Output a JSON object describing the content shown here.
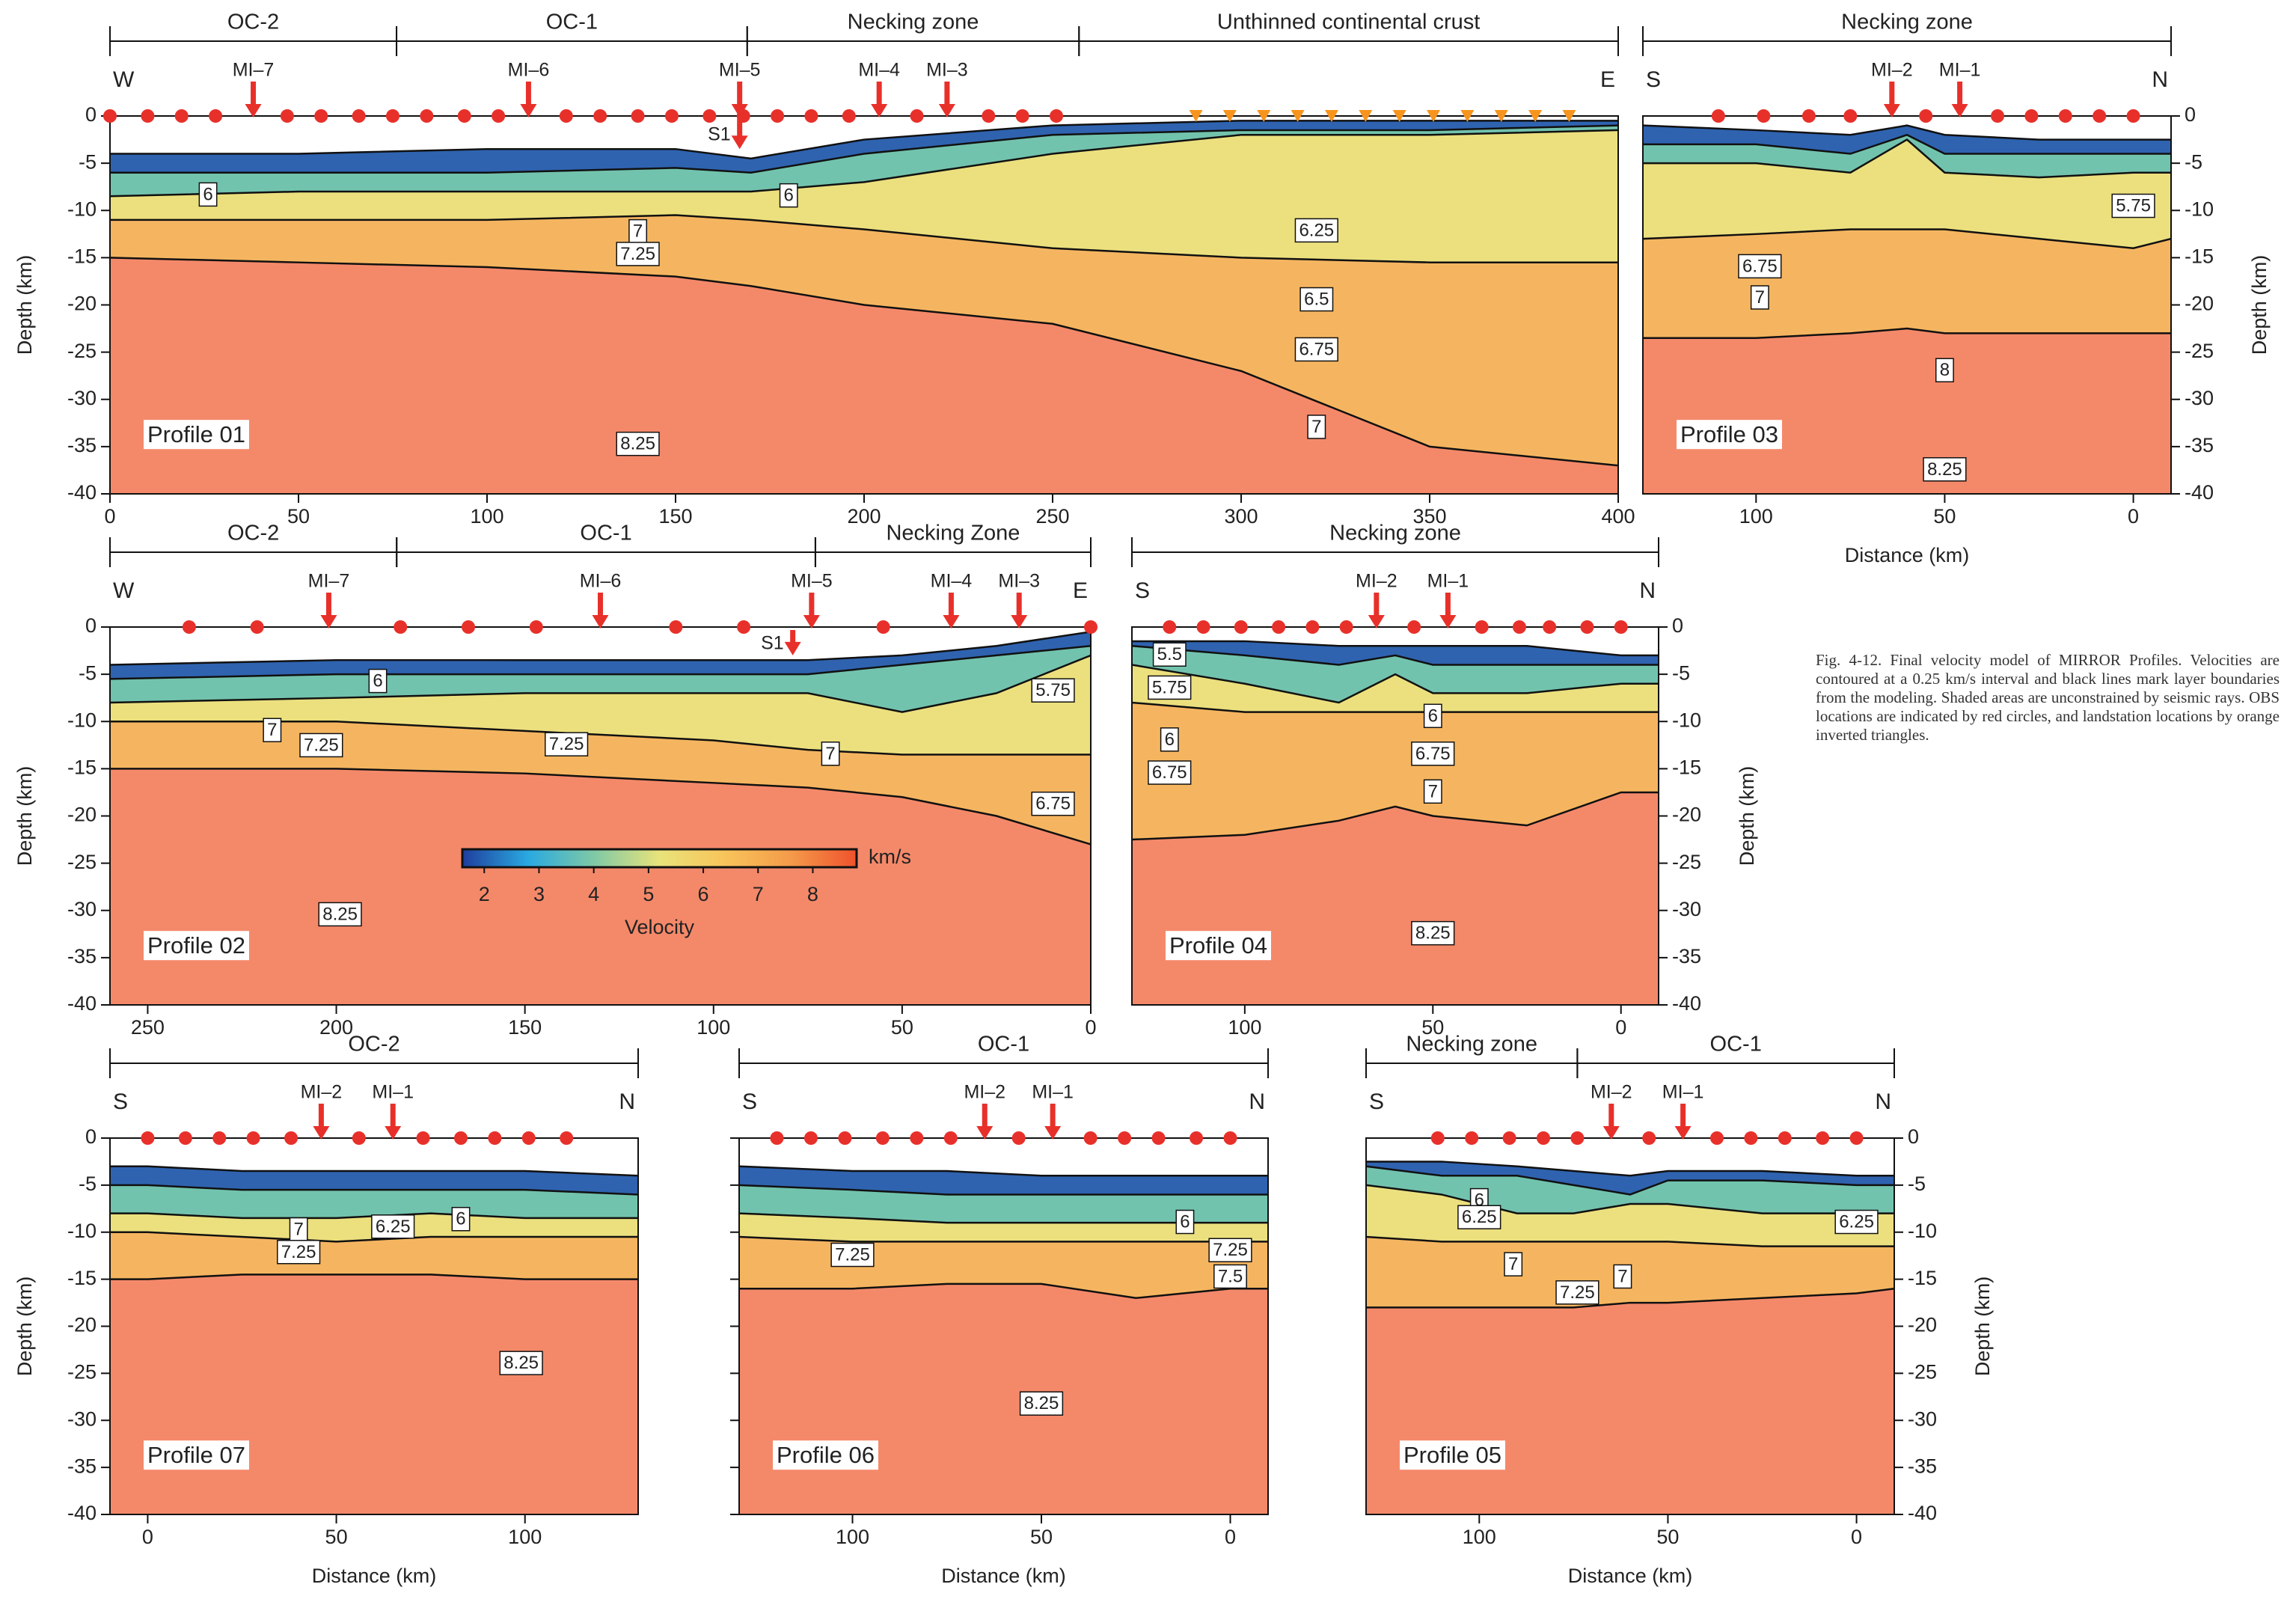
{
  "layer_colors": [
    "#2f63b0",
    "#72c3ad",
    "#ece07e",
    "#f5b560",
    "#f4896a"
  ],
  "caption": "Fig. 4-12. Final velocity model of MIRROR Profiles. Velocities are contoured at a 0.25 km/s interval and black lines mark layer boundaries from the modeling. Shaded areas are unconstrained by seismic rays. OBS locations are indicated by red circles, and landstation locations by orange inverted triangles.",
  "chart_data": [
    {
      "type": "section",
      "title": "Profile 01",
      "ends": [
        "W",
        "E"
      ],
      "zones": [
        {
          "label": "OC-2",
          "from": 0,
          "to": 76
        },
        {
          "label": "OC-1",
          "from": 76,
          "to": 169
        },
        {
          "label": "Necking zone",
          "from": 169,
          "to": 257
        },
        {
          "label": "Unthinned continental crust",
          "from": 257,
          "to": 400
        }
      ],
      "xlim": [
        0,
        400
      ],
      "xticks": [
        0,
        50,
        100,
        150,
        200,
        250,
        300,
        350,
        400
      ],
      "ylim": [
        -40,
        0
      ],
      "yticks": [
        0,
        -5,
        -10,
        -15,
        -20,
        -25,
        -30,
        -35,
        -40
      ],
      "ylabel": "Depth (km)",
      "x": [
        0,
        50,
        100,
        150,
        170,
        200,
        250,
        300,
        350,
        400
      ],
      "boundaries": [
        [
          -4,
          -4,
          -3.5,
          -3.5,
          -4.5,
          -2.5,
          -1,
          -0.5,
          -0.5,
          -0.5
        ],
        [
          -6,
          -6,
          -6,
          -5.5,
          -6,
          -4,
          -2,
          -1.5,
          -1.5,
          -1
        ],
        [
          -8.5,
          -8,
          -8,
          -8,
          -8,
          -7,
          -4,
          -2,
          -2,
          -1.5
        ],
        [
          -11,
          -11,
          -11,
          -10.5,
          -11,
          -12,
          -14,
          -15,
          -15.5,
          -15.5
        ],
        [
          -15,
          -15.5,
          -16,
          -17,
          -18,
          -20,
          -22,
          -27,
          -35,
          -37
        ]
      ],
      "obs": [
        0,
        10,
        19,
        28,
        47,
        56,
        66,
        75,
        84,
        94,
        103,
        121,
        130,
        140,
        149,
        159,
        168,
        177,
        186,
        196,
        214,
        233,
        242,
        251
      ],
      "arrows": [
        {
          "label": "MI–7",
          "x": 38
        },
        {
          "label": "MI–6",
          "x": 111
        },
        {
          "label": "MI–5",
          "x": 167
        },
        {
          "label": "MI–4",
          "x": 204
        },
        {
          "label": "MI–3",
          "x": 222
        }
      ],
      "s1": {
        "label": "S1",
        "x": 167,
        "depth": -3.5
      },
      "landstations": [
        288,
        297,
        306,
        315,
        324,
        333,
        342,
        351,
        360,
        369,
        378,
        387
      ],
      "contours": [
        {
          "value": 6,
          "x": 26,
          "y": -8.4
        },
        {
          "value": 6,
          "x": 180,
          "y": -8.5
        },
        {
          "value": 7,
          "x": 140,
          "y": -12.3
        },
        {
          "value": 7.25,
          "x": 140,
          "y": -14.7
        },
        {
          "value": 6.25,
          "x": 320,
          "y": -12.2
        },
        {
          "value": 6.5,
          "x": 320,
          "y": -19.5
        },
        {
          "value": 6.75,
          "x": 320,
          "y": -24.8
        },
        {
          "value": 7,
          "x": 320,
          "y": -33
        },
        {
          "value": 8.25,
          "x": 140,
          "y": -34.8
        }
      ]
    },
    {
      "type": "section",
      "title": "Profile 03",
      "ends": [
        "S",
        "N"
      ],
      "zones": [
        {
          "label": "Necking zone",
          "from": 130,
          "to": -10
        }
      ],
      "xlim": [
        130,
        -10
      ],
      "xticks": [
        100,
        50,
        0
      ],
      "xlabel": "Distance (km)",
      "ylim": [
        -40,
        0
      ],
      "yticks": [
        0,
        -5,
        -10,
        -15,
        -20,
        -25,
        -30,
        -35,
        -40
      ],
      "ylabel": "Depth (km)",
      "x": [
        130,
        100,
        75,
        60,
        50,
        25,
        0,
        -10
      ],
      "boundaries": [
        [
          -1,
          -1.5,
          -2,
          -1,
          -2,
          -2.5,
          -2.5,
          -2.5
        ],
        [
          -3,
          -3,
          -4,
          -2,
          -4,
          -4,
          -4,
          -4
        ],
        [
          -5,
          -5,
          -6,
          -2.5,
          -6,
          -6.5,
          -6,
          -6
        ],
        [
          -13,
          -12.5,
          -12,
          -12,
          -12,
          -13,
          -14,
          -13
        ],
        [
          -23.5,
          -23.5,
          -23,
          -22.5,
          -23,
          -23,
          -23,
          -23
        ]
      ],
      "obs": [
        110,
        98,
        86,
        75,
        55,
        36,
        27,
        18,
        9,
        0
      ],
      "arrows": [
        {
          "label": "MI–2",
          "x": 64
        },
        {
          "label": "MI–1",
          "x": 46
        }
      ],
      "contours": [
        {
          "value": 5.75,
          "x": 0,
          "y": -9.6
        },
        {
          "value": 6.75,
          "x": 99,
          "y": -16
        },
        {
          "value": 7,
          "x": 99,
          "y": -19.3
        },
        {
          "value": 8,
          "x": 50,
          "y": -27
        },
        {
          "value": 8.25,
          "x": 50,
          "y": -37.5
        }
      ]
    },
    {
      "type": "section",
      "title": "Profile 02",
      "ends": [
        "W",
        "E"
      ],
      "zones": [
        {
          "label": "OC-2",
          "from": 260,
          "to": 184
        },
        {
          "label": "OC-1",
          "from": 184,
          "to": 73
        },
        {
          "label": "Necking Zone",
          "from": 73,
          "to": 0
        }
      ],
      "xlim": [
        260,
        0
      ],
      "xticks": [
        250,
        200,
        150,
        100,
        50,
        0
      ],
      "ylim": [
        -40,
        0
      ],
      "yticks": [
        0,
        -5,
        -10,
        -15,
        -20,
        -25,
        -30,
        -35,
        -40
      ],
      "ylabel": "Depth (km)",
      "x": [
        260,
        200,
        150,
        100,
        75,
        50,
        25,
        0
      ],
      "boundaries": [
        [
          -4,
          -3.5,
          -3.5,
          -3.5,
          -3.5,
          -3,
          -2,
          -0.5
        ],
        [
          -5.5,
          -5,
          -5,
          -5,
          -5,
          -4,
          -3,
          -2
        ],
        [
          -8,
          -7.5,
          -7,
          -7,
          -7,
          -9,
          -7,
          -3
        ],
        [
          -10,
          -10,
          -11,
          -12,
          -13,
          -13.5,
          -13.5,
          -13.5
        ],
        [
          -15,
          -15,
          -15.5,
          -16.5,
          -17,
          -18,
          -20,
          -23
        ]
      ],
      "obs": [
        239,
        221,
        183,
        165,
        147,
        110,
        92,
        55,
        0
      ],
      "arrows": [
        {
          "label": "MI–7",
          "x": 202
        },
        {
          "label": "MI–6",
          "x": 130
        },
        {
          "label": "MI–5",
          "x": 74
        },
        {
          "label": "MI–4",
          "x": 37
        },
        {
          "label": "MI–3",
          "x": 19
        }
      ],
      "s1": {
        "label": "S1",
        "x": 79,
        "depth": -3
      },
      "contours": [
        {
          "value": 6,
          "x": 189,
          "y": -5.8
        },
        {
          "value": 7,
          "x": 217,
          "y": -11
        },
        {
          "value": 7.25,
          "x": 204,
          "y": -12.6
        },
        {
          "value": 7.25,
          "x": 139,
          "y": -12.5
        },
        {
          "value": 5.75,
          "x": 10,
          "y": -6.8
        },
        {
          "value": 7,
          "x": 69,
          "y": -13.5
        },
        {
          "value": 6.75,
          "x": 10,
          "y": -18.8
        },
        {
          "value": 8.25,
          "x": 199,
          "y": -30.5
        }
      ],
      "colorbar": {
        "lim": [
          1.6,
          8.8
        ],
        "ticks": [
          2,
          3,
          4,
          5,
          6,
          7,
          8
        ],
        "unit": "km/s",
        "label": "Velocity",
        "colors": [
          "#1f3e9e",
          "#29a9e0",
          "#7fc9a6",
          "#e8e37a",
          "#f8c45a",
          "#f49a4a",
          "#f0522d"
        ]
      }
    },
    {
      "type": "section",
      "title": "Profile 04",
      "ends": [
        "S",
        "N"
      ],
      "zones": [
        {
          "label": "Necking zone",
          "from": 130,
          "to": -10
        }
      ],
      "xlim": [
        130,
        -10
      ],
      "xticks": [
        100,
        50,
        0
      ],
      "ylim": [
        -40,
        0
      ],
      "yticks": [
        0,
        -5,
        -10,
        -15,
        -20,
        -25,
        -30,
        -35,
        -40
      ],
      "ylabel": "Depth (km)",
      "x": [
        130,
        100,
        75,
        60,
        50,
        25,
        0,
        -10
      ],
      "boundaries": [
        [
          -1.5,
          -1.5,
          -2,
          -2,
          -2,
          -2,
          -3,
          -3
        ],
        [
          -2,
          -3,
          -4,
          -3,
          -4,
          -4,
          -4,
          -4
        ],
        [
          -4,
          -6,
          -8,
          -5,
          -7,
          -7,
          -6,
          -6
        ],
        [
          -8,
          -9,
          -9,
          -9,
          -9,
          -9,
          -9,
          -9
        ],
        [
          -22.5,
          -22,
          -20.5,
          -19,
          -20,
          -21,
          -17.5,
          -17.5
        ]
      ],
      "obs": [
        120,
        111,
        101,
        91,
        82,
        73,
        55,
        37,
        27,
        19,
        9,
        0
      ],
      "arrows": [
        {
          "label": "MI–2",
          "x": 65
        },
        {
          "label": "MI–1",
          "x": 46
        }
      ],
      "contours": [
        {
          "value": 5.5,
          "x": 120,
          "y": -3
        },
        {
          "value": 5.75,
          "x": 120,
          "y": -6.5
        },
        {
          "value": 6,
          "x": 120,
          "y": -12
        },
        {
          "value": 6.75,
          "x": 120,
          "y": -15.5
        },
        {
          "value": 6,
          "x": 50,
          "y": -9.5
        },
        {
          "value": 6.75,
          "x": 50,
          "y": -13.5
        },
        {
          "value": 7,
          "x": 50,
          "y": -17.5
        },
        {
          "value": 8.25,
          "x": 50,
          "y": -32.5
        }
      ]
    },
    {
      "type": "section",
      "title": "Profile 07",
      "ends": [
        "S",
        "N"
      ],
      "zones": [
        {
          "label": "OC-2",
          "from": -10,
          "to": 130
        }
      ],
      "xlim": [
        -10,
        130
      ],
      "xticks": [
        0,
        50,
        100
      ],
      "xlabel": "Distance (km)",
      "ylim": [
        -40,
        0
      ],
      "yticks": [
        0,
        -5,
        -10,
        -15,
        -20,
        -25,
        -30,
        -35,
        -40
      ],
      "ylabel": "Depth (km)",
      "x": [
        -10,
        0,
        25,
        50,
        75,
        100,
        130
      ],
      "boundaries": [
        [
          -3,
          -3,
          -3.5,
          -3.5,
          -3.5,
          -3.5,
          -4
        ],
        [
          -5,
          -5,
          -5.5,
          -5.5,
          -5.5,
          -5.5,
          -6
        ],
        [
          -8,
          -8,
          -8.5,
          -8.5,
          -8,
          -8.5,
          -8.5
        ],
        [
          -10,
          -10,
          -10.5,
          -11,
          -10.5,
          -10.5,
          -10.5
        ],
        [
          -15,
          -15,
          -14.5,
          -14.5,
          -14.5,
          -15,
          -15
        ]
      ],
      "obs": [
        0,
        10,
        19,
        28,
        38,
        56,
        73,
        83,
        92,
        101,
        111
      ],
      "arrows": [
        {
          "label": "MI–2",
          "x": 46
        },
        {
          "label": "MI–1",
          "x": 65
        }
      ],
      "contours": [
        {
          "value": 7,
          "x": 40,
          "y": -9.8
        },
        {
          "value": 7.25,
          "x": 40,
          "y": -12.2
        },
        {
          "value": 6.25,
          "x": 65,
          "y": -9.5
        },
        {
          "value": 6,
          "x": 83,
          "y": -8.7
        },
        {
          "value": 8.25,
          "x": 99,
          "y": -24
        }
      ]
    },
    {
      "type": "section",
      "title": "Profile 06",
      "ends": [
        "S",
        "N"
      ],
      "zones": [
        {
          "label": "OC-1",
          "from": 130,
          "to": -10
        }
      ],
      "xlim": [
        130,
        -10
      ],
      "xticks": [
        100,
        50,
        0
      ],
      "xlabel": "Distance (km)",
      "ylim": [
        -40,
        0
      ],
      "yticks": [
        0,
        -5,
        -10,
        -15,
        -20,
        -25,
        -30,
        -35,
        -40
      ],
      "x": [
        130,
        100,
        75,
        50,
        25,
        0,
        -10
      ],
      "boundaries": [
        [
          -3,
          -3.5,
          -3.5,
          -4,
          -4,
          -4,
          -4
        ],
        [
          -5,
          -5.5,
          -6,
          -6,
          -6,
          -6,
          -6
        ],
        [
          -8,
          -8.5,
          -9,
          -9,
          -9,
          -9,
          -9
        ],
        [
          -10.5,
          -11,
          -11,
          -11,
          -11,
          -11,
          -11
        ],
        [
          -16,
          -16,
          -15.5,
          -15.5,
          -17,
          -16,
          -16
        ]
      ],
      "obs": [
        120,
        111,
        102,
        92,
        83,
        74,
        56,
        37,
        28,
        19,
        9,
        0
      ],
      "arrows": [
        {
          "label": "MI–2",
          "x": 65
        },
        {
          "label": "MI–1",
          "x": 47
        }
      ],
      "contours": [
        {
          "value": 6,
          "x": 12,
          "y": -9
        },
        {
          "value": 7.25,
          "x": 100,
          "y": -12.5
        },
        {
          "value": 7.25,
          "x": 0,
          "y": -12
        },
        {
          "value": 7.5,
          "x": 0,
          "y": -14.8
        },
        {
          "value": 8.25,
          "x": 50,
          "y": -28.3
        }
      ]
    },
    {
      "type": "section",
      "title": "Profile 05",
      "ends": [
        "S",
        "N"
      ],
      "zones": [
        {
          "label": "Necking zone",
          "from": 130,
          "to": 74
        },
        {
          "label": "OC-1",
          "from": 74,
          "to": -10
        }
      ],
      "xlim": [
        130,
        -10
      ],
      "xticks": [
        100,
        50,
        0
      ],
      "xlabel": "Distance (km)",
      "ylim": [
        -40,
        0
      ],
      "yticks": [
        0,
        -5,
        -10,
        -15,
        -20,
        -25,
        -30,
        -35,
        -40
      ],
      "ylabel": "Depth (km)",
      "x": [
        130,
        110,
        90,
        75,
        60,
        50,
        25,
        0,
        -10
      ],
      "boundaries": [
        [
          -2.5,
          -2.5,
          -3,
          -3.5,
          -4,
          -3.5,
          -3.5,
          -4,
          -4
        ],
        [
          -3,
          -4,
          -4,
          -5,
          -6,
          -4.5,
          -4.5,
          -5,
          -5
        ],
        [
          -5,
          -6,
          -8,
          -8,
          -7,
          -7,
          -8,
          -8,
          -8
        ],
        [
          -10.5,
          -11,
          -11,
          -11,
          -11,
          -11,
          -11.5,
          -11.5,
          -11.5
        ],
        [
          -18,
          -18,
          -18,
          -18,
          -17.5,
          -17.5,
          -17,
          -16.5,
          -16
        ]
      ],
      "obs": [
        111,
        102,
        92,
        83,
        74,
        55,
        37,
        28,
        19,
        9,
        0
      ],
      "arrows": [
        {
          "label": "MI–2",
          "x": 65
        },
        {
          "label": "MI–1",
          "x": 46
        }
      ],
      "contours": [
        {
          "value": 6,
          "x": 100,
          "y": -6.7
        },
        {
          "value": 6.25,
          "x": 100,
          "y": -8.5
        },
        {
          "value": 7,
          "x": 91,
          "y": -13.5
        },
        {
          "value": 7.25,
          "x": 74,
          "y": -16.5
        },
        {
          "value": 7,
          "x": 62,
          "y": -14.8
        },
        {
          "value": 6.25,
          "x": 0,
          "y": -9
        }
      ]
    }
  ]
}
